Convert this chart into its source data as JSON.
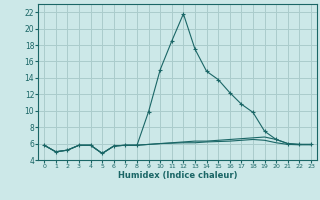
{
  "title": "",
  "xlabel": "Humidex (Indice chaleur)",
  "bg_color": "#cce8e8",
  "grid_color": "#aacccc",
  "line_color": "#1a6666",
  "xlim": [
    -0.5,
    23.5
  ],
  "ylim": [
    4,
    23
  ],
  "xticks": [
    0,
    1,
    2,
    3,
    4,
    5,
    6,
    7,
    8,
    9,
    10,
    11,
    12,
    13,
    14,
    15,
    16,
    17,
    18,
    19,
    20,
    21,
    22,
    23
  ],
  "yticks": [
    4,
    6,
    8,
    10,
    12,
    14,
    16,
    18,
    20,
    22
  ],
  "main_x": [
    0,
    1,
    2,
    3,
    4,
    5,
    6,
    7,
    8,
    9,
    10,
    11,
    12,
    13,
    14,
    15,
    16,
    17,
    18,
    19,
    20,
    21,
    22,
    23
  ],
  "main_y": [
    5.8,
    5.0,
    5.2,
    5.8,
    5.8,
    4.8,
    5.7,
    5.8,
    5.8,
    9.9,
    15.0,
    18.5,
    21.8,
    17.5,
    14.8,
    13.8,
    12.2,
    10.8,
    9.8,
    7.5,
    6.5,
    6.0,
    5.9,
    5.9
  ],
  "flat1_x": [
    0,
    1,
    2,
    3,
    4,
    5,
    6,
    7,
    8,
    9,
    10,
    11,
    12,
    13,
    14,
    15,
    16,
    17,
    18,
    19,
    20,
    21,
    22,
    23
  ],
  "flat1_y": [
    5.8,
    5.0,
    5.2,
    5.8,
    5.8,
    4.8,
    5.7,
    5.8,
    5.8,
    5.9,
    6.0,
    6.1,
    6.2,
    6.3,
    6.3,
    6.4,
    6.5,
    6.6,
    6.7,
    6.8,
    6.5,
    6.0,
    5.9,
    5.9
  ],
  "flat2_x": [
    0,
    1,
    2,
    3,
    4,
    5,
    6,
    7,
    8,
    9,
    10,
    11,
    12,
    13,
    14,
    15,
    16,
    17,
    18,
    19,
    20,
    21,
    22,
    23
  ],
  "flat2_y": [
    5.8,
    5.0,
    5.2,
    5.8,
    5.8,
    4.8,
    5.7,
    5.8,
    5.8,
    5.9,
    6.0,
    6.05,
    6.1,
    6.1,
    6.2,
    6.25,
    6.3,
    6.4,
    6.5,
    6.4,
    6.1,
    5.9,
    5.85,
    5.85
  ]
}
